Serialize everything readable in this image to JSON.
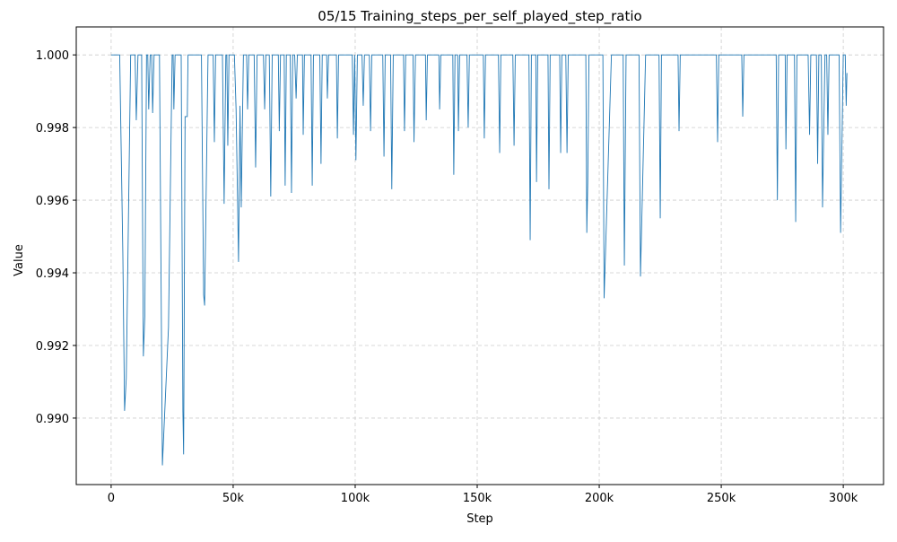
{
  "chart_data": {
    "type": "line",
    "title": "05/15  Training_steps_per_self_played_step_ratio",
    "xlabel": "Step",
    "ylabel": "Value",
    "color": "#1f77b4",
    "grid": true,
    "xlim": [
      -14300,
      316500
    ],
    "ylim": [
      0.98817,
      1.00077
    ],
    "xticks": [
      {
        "value": 0,
        "label": "0"
      },
      {
        "value": 50000,
        "label": "50k"
      },
      {
        "value": 100000,
        "label": "100k"
      },
      {
        "value": 150000,
        "label": "150k"
      },
      {
        "value": 200000,
        "label": "200k"
      },
      {
        "value": 250000,
        "label": "250k"
      },
      {
        "value": 300000,
        "label": "300k"
      }
    ],
    "yticks": [
      {
        "value": 0.99,
        "label": "0.990"
      },
      {
        "value": 0.992,
        "label": "0.992"
      },
      {
        "value": 0.994,
        "label": "0.994"
      },
      {
        "value": 0.996,
        "label": "0.996"
      },
      {
        "value": 0.998,
        "label": "0.998"
      },
      {
        "value": 1,
        "label": "1.000"
      }
    ],
    "x": [
      0,
      3500,
      4800,
      5500,
      6200,
      8000,
      9800,
      10300,
      11000,
      12500,
      13200,
      13800,
      14500,
      15000,
      15400,
      16000,
      16600,
      17000,
      17600,
      19800,
      21000,
      23500,
      25000,
      25400,
      25700,
      26200,
      28700,
      29400,
      29700,
      30300,
      31200,
      31500,
      37000,
      37900,
      38300,
      39700,
      41800,
      42300,
      42800,
      45600,
      46300,
      47000,
      47400,
      47800,
      48300,
      50500,
      51200,
      52200,
      52800,
      53300,
      54200,
      55500,
      55900,
      56400,
      58600,
      59200,
      59800,
      62400,
      62900,
      63400,
      64800,
      65400,
      66000,
      68500,
      68900,
      69400,
      70900,
      71300,
      71800,
      73400,
      73900,
      74400,
      75200,
      75800,
      76300,
      78400,
      78700,
      79200,
      81900,
      82400,
      82900,
      85500,
      86000,
      86500,
      88300,
      88600,
      89100,
      92300,
      92700,
      93200,
      98800,
      99300,
      99800,
      100300,
      100900,
      102800,
      103300,
      103800,
      105800,
      106300,
      106800,
      111300,
      111800,
      112300,
      114500,
      115000,
      115600,
      119800,
      120200,
      120700,
      123700,
      124100,
      124700,
      128800,
      129100,
      129600,
      134300,
      134600,
      135100,
      140000,
      140400,
      140900,
      142000,
      142300,
      142800,
      145800,
      146300,
      146800,
      152500,
      152900,
      153400,
      158700,
      159200,
      159700,
      164600,
      165100,
      165600,
      171200,
      171700,
      172200,
      174000,
      174300,
      174800,
      179000,
      179400,
      179900,
      183800,
      184200,
      184700,
      186300,
      186800,
      187300,
      194500,
      194900,
      195300,
      195800,
      201500,
      202000,
      205000,
      209800,
      210300,
      211000,
      216300,
      216900,
      219000,
      224500,
      225000,
      225500,
      232300,
      232700,
      233200,
      248000,
      248500,
      249000,
      258400,
      258800,
      259300,
      272500,
      273000,
      273500,
      276200,
      276500,
      277000,
      280000,
      280500,
      281000,
      285600,
      286200,
      286700,
      289000,
      289500,
      290000,
      291000,
      291500,
      292500,
      293200,
      293700,
      294200,
      298300,
      298900,
      300000,
      300800,
      301200,
      301500
    ],
    "values": [
      1,
      1,
      0.9945,
      0.9902,
      0.9911,
      1,
      1,
      0.9982,
      1,
      1,
      0.9917,
      0.9928,
      1,
      1,
      0.9985,
      1,
      1,
      0.9984,
      1,
      1,
      0.9887,
      0.9925,
      1,
      1,
      0.9985,
      1,
      1,
      0.9902,
      0.989,
      0.9983,
      0.9983,
      1,
      1,
      0.9934,
      0.9931,
      1,
      1,
      0.9976,
      1,
      1,
      0.9959,
      1,
      1,
      0.9975,
      1,
      1,
      0.9985,
      0.9943,
      0.9986,
      0.9958,
      1,
      1,
      0.9985,
      1,
      1,
      0.9969,
      1,
      1,
      0.9985,
      1,
      1,
      0.9961,
      1,
      1,
      0.9979,
      1,
      1,
      0.9964,
      1,
      1,
      0.9962,
      1,
      1,
      0.9988,
      1,
      1,
      0.9978,
      1,
      1,
      0.9964,
      1,
      1,
      0.997,
      1,
      1,
      0.9988,
      1,
      1,
      0.9977,
      1,
      1,
      0.9978,
      1,
      0.9971,
      1,
      1,
      0.9986,
      1,
      1,
      0.9979,
      1,
      1,
      0.9972,
      1,
      1,
      0.9963,
      1,
      1,
      0.9979,
      1,
      1,
      0.9976,
      1,
      1,
      0.9982,
      1,
      1,
      0.9985,
      1,
      1,
      0.9967,
      1,
      1,
      0.9979,
      1,
      1,
      0.998,
      1,
      1,
      0.9977,
      1,
      1,
      0.9973,
      1,
      1,
      0.9975,
      1,
      1,
      0.9949,
      1,
      1,
      0.9965,
      1,
      1,
      0.9963,
      1,
      1,
      0.9973,
      1,
      1,
      0.9973,
      1,
      1,
      0.9951,
      0.9965,
      1,
      1,
      0.9933,
      1,
      1,
      0.9942,
      1,
      1,
      0.9939,
      1,
      1,
      0.9955,
      1,
      1,
      0.9979,
      1,
      1,
      0.9976,
      1,
      1,
      0.9983,
      1,
      1,
      0.996,
      1,
      1,
      0.9974,
      1,
      1,
      0.9954,
      1,
      1,
      0.9978,
      1,
      1,
      0.997,
      1,
      1,
      0.9958,
      1,
      1,
      0.9978,
      1,
      1,
      0.9951,
      1,
      1,
      0.9986,
      0.9995
    ]
  }
}
